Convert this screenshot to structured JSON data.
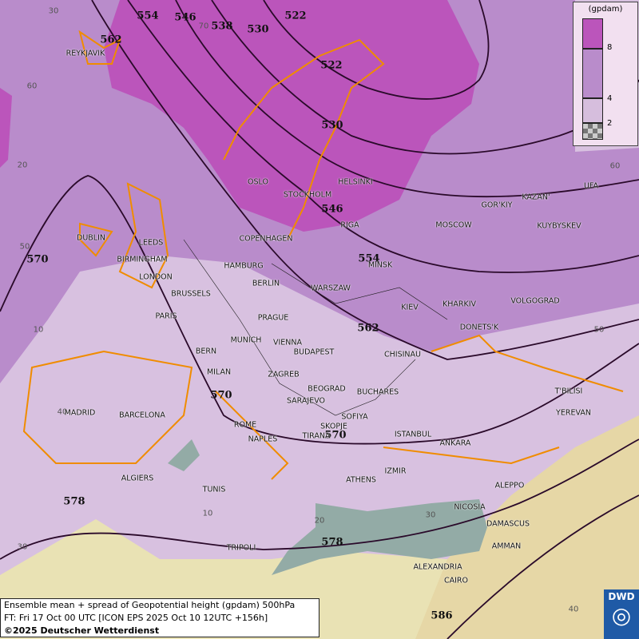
{
  "legend": {
    "unit": "(gpdam)",
    "ticks": [
      "8",
      "4",
      "2"
    ],
    "colors": [
      "#bb55bb",
      "#b98ccb",
      "#d6bedd",
      "#aaaaaa"
    ]
  },
  "caption": {
    "line1": "Ensemble mean + spread of Geopotential height (gpdam) 500hPa",
    "line2": "FT: Fri 17 Oct 00 UTC [ICON EPS 2025 Oct 10 12UTC +156h]",
    "line3": "©2025 Deutscher Wetterdienst"
  },
  "logo": {
    "text": "DWD"
  },
  "colors": {
    "low_spread": "#d8c1e0",
    "mid_spread": "#b98ccb",
    "high_spread": "#bb55bb",
    "sea_low": "#93aba6",
    "coast": "#f08c00",
    "contour": "#2a0a2a"
  },
  "contours": [
    "554",
    "546",
    "538",
    "530",
    "522",
    "562",
    "522",
    "530",
    "546",
    "554",
    "562",
    "570",
    "570",
    "570",
    "578",
    "578",
    "586"
  ],
  "grid_labels": [
    "30",
    "70",
    "60",
    "20",
    "60",
    "50",
    "10",
    "50",
    "40",
    "30",
    "10",
    "20",
    "30",
    "40"
  ],
  "cities": [
    "REYKJAVIK",
    "OSLO",
    "STOCKHOLM",
    "HELSINKI",
    "RIGA",
    "COPENHAGEN",
    "DUBLIN",
    "LEEDS",
    "BIRMINGHAM",
    "LONDON",
    "HAMBURG",
    "BERLIN",
    "MINSK",
    "MOSCOW",
    "GOR'KIY",
    "KAZAN'",
    "UFA",
    "KUYBYSKEV",
    "WARSZAW",
    "KIEV",
    "KHARKIV",
    "VOLGOGRAD",
    "DONETS'K",
    "BRUSSELS",
    "PARIS",
    "PRAGUE",
    "MUNICH",
    "VIENNA",
    "BUDAPEST",
    "BERN",
    "MILAN",
    "ZAGREB",
    "CHISINAU",
    "BEOGRAD",
    "BUCHARES",
    "SARAJEVO",
    "T'BILISI",
    "YEREVAN",
    "MADRID",
    "BARCELONA",
    "ROME",
    "NAPLES",
    "SOFIYA",
    "SKOPJE",
    "TIRANA",
    "ISTANBUL",
    "ANKARA",
    "ALGIERS",
    "TUNIS",
    "ATHENS",
    "IZMIR",
    "ALEPPO",
    "NICOSIA",
    "DAMASCUS",
    "AMMAN",
    "TRIPOLI",
    "ALEXANDRIA",
    "CAIRO"
  ]
}
